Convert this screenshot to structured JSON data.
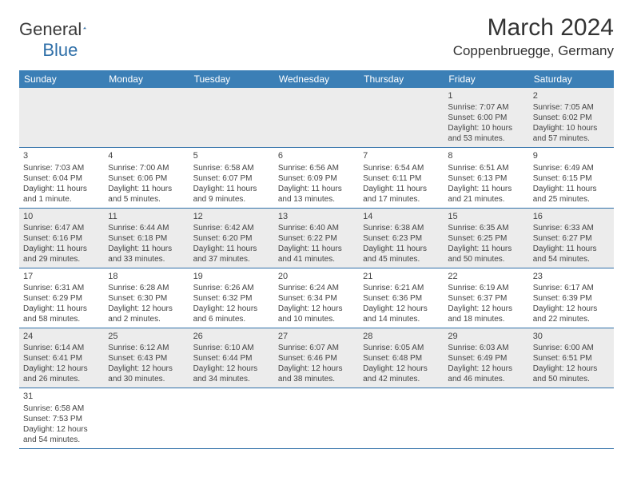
{
  "logo": {
    "part1": "General",
    "part2": "Blue"
  },
  "title": "March 2024",
  "location": "Coppenbruegge, Germany",
  "colors": {
    "header_bg": "#3b7fb6",
    "header_text": "#ffffff",
    "row_alt_bg": "#ececec",
    "row_bg": "#ffffff",
    "border": "#2f6fa8",
    "text": "#444444",
    "logo_gray": "#3a3a3a",
    "logo_blue": "#2f6fa8"
  },
  "weekdays": [
    "Sunday",
    "Monday",
    "Tuesday",
    "Wednesday",
    "Thursday",
    "Friday",
    "Saturday"
  ],
  "weeks": [
    [
      null,
      null,
      null,
      null,
      null,
      {
        "n": "1",
        "sr": "Sunrise: 7:07 AM",
        "ss": "Sunset: 6:00 PM",
        "d1": "Daylight: 10 hours",
        "d2": "and 53 minutes."
      },
      {
        "n": "2",
        "sr": "Sunrise: 7:05 AM",
        "ss": "Sunset: 6:02 PM",
        "d1": "Daylight: 10 hours",
        "d2": "and 57 minutes."
      }
    ],
    [
      {
        "n": "3",
        "sr": "Sunrise: 7:03 AM",
        "ss": "Sunset: 6:04 PM",
        "d1": "Daylight: 11 hours",
        "d2": "and 1 minute."
      },
      {
        "n": "4",
        "sr": "Sunrise: 7:00 AM",
        "ss": "Sunset: 6:06 PM",
        "d1": "Daylight: 11 hours",
        "d2": "and 5 minutes."
      },
      {
        "n": "5",
        "sr": "Sunrise: 6:58 AM",
        "ss": "Sunset: 6:07 PM",
        "d1": "Daylight: 11 hours",
        "d2": "and 9 minutes."
      },
      {
        "n": "6",
        "sr": "Sunrise: 6:56 AM",
        "ss": "Sunset: 6:09 PM",
        "d1": "Daylight: 11 hours",
        "d2": "and 13 minutes."
      },
      {
        "n": "7",
        "sr": "Sunrise: 6:54 AM",
        "ss": "Sunset: 6:11 PM",
        "d1": "Daylight: 11 hours",
        "d2": "and 17 minutes."
      },
      {
        "n": "8",
        "sr": "Sunrise: 6:51 AM",
        "ss": "Sunset: 6:13 PM",
        "d1": "Daylight: 11 hours",
        "d2": "and 21 minutes."
      },
      {
        "n": "9",
        "sr": "Sunrise: 6:49 AM",
        "ss": "Sunset: 6:15 PM",
        "d1": "Daylight: 11 hours",
        "d2": "and 25 minutes."
      }
    ],
    [
      {
        "n": "10",
        "sr": "Sunrise: 6:47 AM",
        "ss": "Sunset: 6:16 PM",
        "d1": "Daylight: 11 hours",
        "d2": "and 29 minutes."
      },
      {
        "n": "11",
        "sr": "Sunrise: 6:44 AM",
        "ss": "Sunset: 6:18 PM",
        "d1": "Daylight: 11 hours",
        "d2": "and 33 minutes."
      },
      {
        "n": "12",
        "sr": "Sunrise: 6:42 AM",
        "ss": "Sunset: 6:20 PM",
        "d1": "Daylight: 11 hours",
        "d2": "and 37 minutes."
      },
      {
        "n": "13",
        "sr": "Sunrise: 6:40 AM",
        "ss": "Sunset: 6:22 PM",
        "d1": "Daylight: 11 hours",
        "d2": "and 41 minutes."
      },
      {
        "n": "14",
        "sr": "Sunrise: 6:38 AM",
        "ss": "Sunset: 6:23 PM",
        "d1": "Daylight: 11 hours",
        "d2": "and 45 minutes."
      },
      {
        "n": "15",
        "sr": "Sunrise: 6:35 AM",
        "ss": "Sunset: 6:25 PM",
        "d1": "Daylight: 11 hours",
        "d2": "and 50 minutes."
      },
      {
        "n": "16",
        "sr": "Sunrise: 6:33 AM",
        "ss": "Sunset: 6:27 PM",
        "d1": "Daylight: 11 hours",
        "d2": "and 54 minutes."
      }
    ],
    [
      {
        "n": "17",
        "sr": "Sunrise: 6:31 AM",
        "ss": "Sunset: 6:29 PM",
        "d1": "Daylight: 11 hours",
        "d2": "and 58 minutes."
      },
      {
        "n": "18",
        "sr": "Sunrise: 6:28 AM",
        "ss": "Sunset: 6:30 PM",
        "d1": "Daylight: 12 hours",
        "d2": "and 2 minutes."
      },
      {
        "n": "19",
        "sr": "Sunrise: 6:26 AM",
        "ss": "Sunset: 6:32 PM",
        "d1": "Daylight: 12 hours",
        "d2": "and 6 minutes."
      },
      {
        "n": "20",
        "sr": "Sunrise: 6:24 AM",
        "ss": "Sunset: 6:34 PM",
        "d1": "Daylight: 12 hours",
        "d2": "and 10 minutes."
      },
      {
        "n": "21",
        "sr": "Sunrise: 6:21 AM",
        "ss": "Sunset: 6:36 PM",
        "d1": "Daylight: 12 hours",
        "d2": "and 14 minutes."
      },
      {
        "n": "22",
        "sr": "Sunrise: 6:19 AM",
        "ss": "Sunset: 6:37 PM",
        "d1": "Daylight: 12 hours",
        "d2": "and 18 minutes."
      },
      {
        "n": "23",
        "sr": "Sunrise: 6:17 AM",
        "ss": "Sunset: 6:39 PM",
        "d1": "Daylight: 12 hours",
        "d2": "and 22 minutes."
      }
    ],
    [
      {
        "n": "24",
        "sr": "Sunrise: 6:14 AM",
        "ss": "Sunset: 6:41 PM",
        "d1": "Daylight: 12 hours",
        "d2": "and 26 minutes."
      },
      {
        "n": "25",
        "sr": "Sunrise: 6:12 AM",
        "ss": "Sunset: 6:43 PM",
        "d1": "Daylight: 12 hours",
        "d2": "and 30 minutes."
      },
      {
        "n": "26",
        "sr": "Sunrise: 6:10 AM",
        "ss": "Sunset: 6:44 PM",
        "d1": "Daylight: 12 hours",
        "d2": "and 34 minutes."
      },
      {
        "n": "27",
        "sr": "Sunrise: 6:07 AM",
        "ss": "Sunset: 6:46 PM",
        "d1": "Daylight: 12 hours",
        "d2": "and 38 minutes."
      },
      {
        "n": "28",
        "sr": "Sunrise: 6:05 AM",
        "ss": "Sunset: 6:48 PM",
        "d1": "Daylight: 12 hours",
        "d2": "and 42 minutes."
      },
      {
        "n": "29",
        "sr": "Sunrise: 6:03 AM",
        "ss": "Sunset: 6:49 PM",
        "d1": "Daylight: 12 hours",
        "d2": "and 46 minutes."
      },
      {
        "n": "30",
        "sr": "Sunrise: 6:00 AM",
        "ss": "Sunset: 6:51 PM",
        "d1": "Daylight: 12 hours",
        "d2": "and 50 minutes."
      }
    ],
    [
      {
        "n": "31",
        "sr": "Sunrise: 6:58 AM",
        "ss": "Sunset: 7:53 PM",
        "d1": "Daylight: 12 hours",
        "d2": "and 54 minutes."
      },
      null,
      null,
      null,
      null,
      null,
      null
    ]
  ]
}
